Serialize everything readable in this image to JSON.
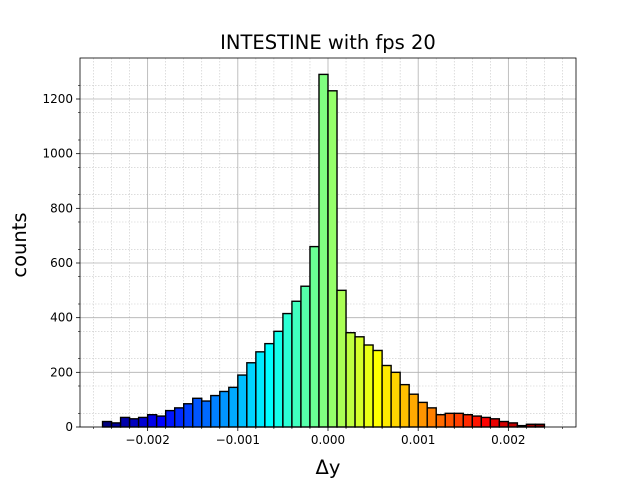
{
  "chart_data": {
    "type": "bar",
    "title": "INTESTINE with fps 20",
    "xlabel": "Δy",
    "ylabel": "counts",
    "xlim": [
      -0.00275,
      0.00275
    ],
    "ylim": [
      0,
      1350
    ],
    "bin_start": -0.0025,
    "bin_width": 0.0001,
    "values": [
      20,
      15,
      35,
      30,
      35,
      45,
      40,
      60,
      70,
      85,
      105,
      95,
      115,
      130,
      145,
      190,
      235,
      275,
      305,
      350,
      415,
      460,
      515,
      660,
      1290,
      1230,
      500,
      345,
      330,
      300,
      280,
      225,
      200,
      155,
      120,
      90,
      70,
      45,
      50,
      50,
      45,
      40,
      35,
      30,
      20,
      15,
      5,
      10,
      10
    ],
    "xticks": [
      -0.002,
      -0.001,
      0.0,
      0.001,
      0.002
    ],
    "xtick_labels": [
      "−0.002",
      "−0.001",
      "0.000",
      "0.001",
      "0.002"
    ],
    "yticks": [
      0,
      200,
      400,
      600,
      800,
      1000,
      1200
    ],
    "ytick_labels": [
      "0",
      "200",
      "400",
      "600",
      "800",
      "1000",
      "1200"
    ],
    "colormap": "jet",
    "bar_edge_color": "#000000",
    "grid_major_color": "#b0b0b0",
    "grid_minor_color": "#c8c8c8",
    "grid": true
  }
}
